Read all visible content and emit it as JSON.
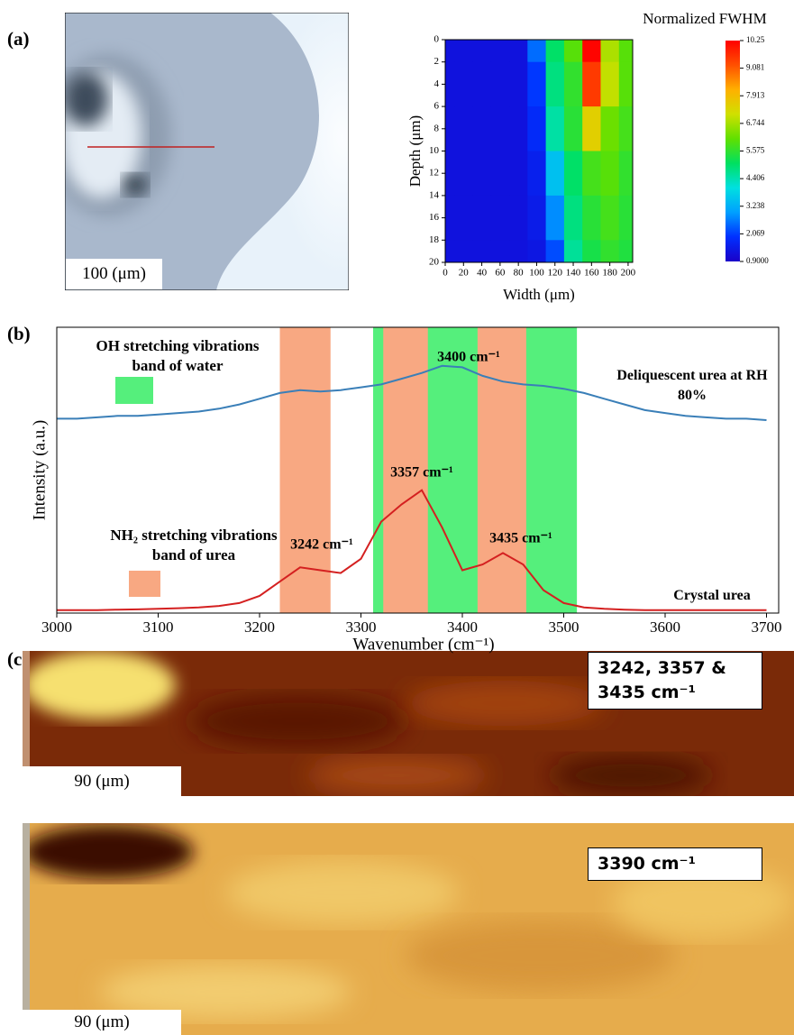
{
  "panel_labels": [
    "(a)",
    "(b)",
    "(c)"
  ],
  "micrograph": {
    "scale_bar": "100 (μm)"
  },
  "chart_data": [
    {
      "type": "heatmap",
      "title": "Normalized FWHM",
      "xlabel": "Width (μm)",
      "ylabel": "Depth (μm)",
      "x": [
        0,
        20,
        40,
        60,
        80,
        100,
        120,
        140,
        160,
        180,
        200
      ],
      "y": [
        0,
        4,
        8,
        12,
        16,
        20
      ],
      "z": [
        [
          1.3,
          1.3,
          1.3,
          1.3,
          1.3,
          2.5,
          5.0,
          6.0,
          10.2,
          6.8,
          6.0
        ],
        [
          1.3,
          1.3,
          1.3,
          1.3,
          1.3,
          2.0,
          4.8,
          5.6,
          9.5,
          7.0,
          6.0
        ],
        [
          1.3,
          1.3,
          1.3,
          1.3,
          1.3,
          1.8,
          4.5,
          5.5,
          7.5,
          6.2,
          5.8
        ],
        [
          1.3,
          1.3,
          1.3,
          1.3,
          1.3,
          1.6,
          3.5,
          5.0,
          5.8,
          6.0,
          5.6
        ],
        [
          1.3,
          1.3,
          1.3,
          1.3,
          1.3,
          1.5,
          2.8,
          4.8,
          5.5,
          5.8,
          5.5
        ],
        [
          1.3,
          1.3,
          1.3,
          1.3,
          1.3,
          1.4,
          2.2,
          4.6,
          5.3,
          5.6,
          5.4
        ]
      ],
      "xlim": [
        0,
        205
      ],
      "xticks": [
        0,
        20,
        40,
        60,
        80,
        100,
        120,
        140,
        160,
        180,
        200
      ],
      "ylim": [
        0,
        20
      ],
      "y_reversed": true,
      "yticks": [
        0,
        2,
        4,
        6,
        8,
        10,
        12,
        14,
        16,
        18,
        20
      ],
      "zlim": [
        0.9,
        10.25
      ],
      "zticks": [
        {
          "value": 0.9,
          "label": "0.9000"
        },
        2.069,
        3.238,
        4.406,
        5.575,
        6.744,
        7.913,
        9.081,
        10.25
      ],
      "colormap": [
        "#1a00c8",
        "#0030ff",
        "#00a0ff",
        "#00e0e0",
        "#00e060",
        "#60e000",
        "#d0e000",
        "#ffb000",
        "#ff5000",
        "#ff0000"
      ]
    },
    {
      "type": "line",
      "xlabel": "Wavenumber (cm⁻¹)",
      "ylabel": "Intensity (a.u.)",
      "x": [
        3000,
        3020,
        3040,
        3060,
        3080,
        3100,
        3120,
        3140,
        3160,
        3180,
        3200,
        3220,
        3240,
        3260,
        3280,
        3300,
        3320,
        3340,
        3360,
        3380,
        3400,
        3420,
        3440,
        3460,
        3480,
        3500,
        3520,
        3540,
        3560,
        3580,
        3600,
        3620,
        3640,
        3660,
        3680,
        3700
      ],
      "series": [
        {
          "name": "Deliquescent urea at RH 80%",
          "color": "#3a7fb8",
          "values": [
            0.68,
            0.68,
            0.685,
            0.69,
            0.69,
            0.695,
            0.7,
            0.705,
            0.715,
            0.73,
            0.75,
            0.77,
            0.78,
            0.775,
            0.78,
            0.79,
            0.8,
            0.82,
            0.84,
            0.865,
            0.86,
            0.83,
            0.81,
            0.8,
            0.795,
            0.785,
            0.77,
            0.75,
            0.73,
            0.71,
            0.7,
            0.69,
            0.685,
            0.68,
            0.68,
            0.675
          ]
        },
        {
          "name": "Crystal urea",
          "color": "#d42020",
          "values": [
            0.01,
            0.01,
            0.01,
            0.012,
            0.013,
            0.015,
            0.017,
            0.02,
            0.025,
            0.035,
            0.06,
            0.11,
            0.16,
            0.15,
            0.14,
            0.19,
            0.32,
            0.38,
            0.43,
            0.3,
            0.15,
            0.17,
            0.21,
            0.17,
            0.08,
            0.035,
            0.02,
            0.015,
            0.012,
            0.01,
            0.01,
            0.01,
            0.01,
            0.01,
            0.01,
            0.01
          ]
        }
      ],
      "bands": [
        {
          "name": "OH stretching vibrations band of water",
          "color": "#55ef7c",
          "ranges": [
            [
              3312,
              3513
            ]
          ]
        },
        {
          "name": "NH₂ stretching vibrations band of urea",
          "color": "#f8a882",
          "ranges": [
            [
              3220,
              3270
            ],
            [
              3322,
              3366
            ],
            [
              3415,
              3463
            ]
          ]
        }
      ],
      "peak_labels": [
        "3400 cm⁻¹",
        "3357 cm⁻¹",
        "3242 cm⁻¹",
        "3435 cm⁻¹"
      ],
      "xlim": [
        3000,
        3712
      ],
      "xticks": [
        3000,
        3100,
        3200,
        3300,
        3400,
        3500,
        3600,
        3700
      ],
      "ylim": [
        0,
        1
      ]
    }
  ],
  "maps": [
    {
      "label": "3242, 3357 & 3435 cm⁻¹",
      "scale_bar": "90 (μm)"
    },
    {
      "label": "3390 cm⁻¹",
      "scale_bar": "90 (μm)"
    }
  ]
}
